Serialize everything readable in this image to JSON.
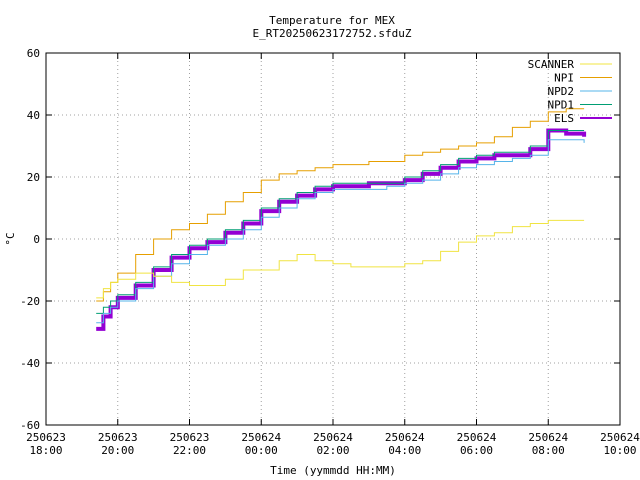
{
  "chart_data": {
    "type": "line",
    "title": "Temperature for MEX",
    "subtitle": "E_RT20250623172752.sfduZ",
    "xlabel": "Time (yymmdd HH:MM)",
    "ylabel": "°C",
    "xlim": [
      18,
      34
    ],
    "ylim": [
      -60,
      60
    ],
    "x_ticks": [
      {
        "value": 18,
        "date": "250623",
        "time": "18:00"
      },
      {
        "value": 20,
        "date": "250623",
        "time": "20:00"
      },
      {
        "value": 22,
        "date": "250623",
        "time": "22:00"
      },
      {
        "value": 24,
        "date": "250624",
        "time": "00:00"
      },
      {
        "value": 26,
        "date": "250624",
        "time": "02:00"
      },
      {
        "value": 28,
        "date": "250624",
        "time": "04:00"
      },
      {
        "value": 30,
        "date": "250624",
        "time": "06:00"
      },
      {
        "value": 32,
        "date": "250624",
        "time": "08:00"
      },
      {
        "value": 34,
        "date": "250624",
        "time": "10:00"
      }
    ],
    "y_ticks": [
      -60,
      -40,
      -20,
      0,
      20,
      40,
      60
    ],
    "grid": true,
    "legend_position": "top-right",
    "series": [
      {
        "name": "ELS",
        "color": "#9400d3",
        "width": 4,
        "x": [
          19.4,
          19.6,
          19.8,
          20.0,
          20.5,
          21.0,
          21.5,
          22.0,
          22.5,
          23.0,
          23.5,
          24.0,
          24.5,
          25.0,
          25.5,
          26.0,
          26.5,
          27.0,
          27.5,
          28.0,
          28.5,
          29.0,
          29.5,
          30.0,
          30.5,
          31.0,
          31.5,
          32.0,
          32.5,
          33.0
        ],
        "y": [
          -29,
          -25,
          -22,
          -19,
          -15,
          -10,
          -6,
          -3,
          -1,
          2,
          5,
          9,
          12,
          14,
          16,
          17,
          17,
          18,
          18,
          19,
          21,
          23,
          25,
          26,
          27,
          27,
          29,
          35,
          34,
          33
        ]
      },
      {
        "name": "NPD1",
        "color": "#009e73",
        "width": 1,
        "x": [
          19.4,
          19.6,
          19.8,
          20.0,
          20.5,
          21.0,
          21.5,
          22.0,
          22.5,
          23.0,
          23.5,
          24.0,
          24.5,
          25.0,
          25.5,
          26.0,
          26.5,
          27.0,
          27.5,
          28.0,
          28.5,
          29.0,
          29.5,
          30.0,
          30.5,
          31.0,
          31.5,
          32.0,
          32.5,
          33.0
        ],
        "y": [
          -24,
          -22,
          -20,
          -18,
          -14,
          -9,
          -5,
          -2,
          0,
          3,
          6,
          10,
          13,
          15,
          17,
          18,
          18,
          18,
          18,
          20,
          22,
          24,
          26,
          27,
          28,
          28,
          30,
          35,
          35,
          35
        ]
      },
      {
        "name": "NPD2",
        "color": "#56b4e9",
        "width": 1,
        "x": [
          19.4,
          19.6,
          19.8,
          20.0,
          20.5,
          21.0,
          21.5,
          22.0,
          22.5,
          23.0,
          23.5,
          24.0,
          24.5,
          25.0,
          25.5,
          26.0,
          26.5,
          27.0,
          27.5,
          28.0,
          28.5,
          29.0,
          29.5,
          30.0,
          30.5,
          31.0,
          31.5,
          32.0,
          32.5,
          33.0
        ],
        "y": [
          -27,
          -24,
          -22,
          -20,
          -16,
          -12,
          -8,
          -5,
          -2,
          0,
          3,
          7,
          10,
          13,
          15,
          16,
          16,
          16,
          17,
          18,
          19,
          21,
          23,
          24,
          25,
          26,
          27,
          32,
          32,
          31
        ]
      },
      {
        "name": "NPI",
        "color": "#e69f00",
        "width": 1,
        "x": [
          19.4,
          19.6,
          19.8,
          20.0,
          20.5,
          21.0,
          21.5,
          22.0,
          22.5,
          23.0,
          23.5,
          24.0,
          24.5,
          25.0,
          25.5,
          26.0,
          26.5,
          27.0,
          27.5,
          28.0,
          28.5,
          29.0,
          29.5,
          30.0,
          30.5,
          31.0,
          31.5,
          32.0,
          32.5,
          33.0
        ],
        "y": [
          -20,
          -17,
          -14,
          -11,
          -5,
          0,
          3,
          5,
          8,
          12,
          15,
          19,
          21,
          22,
          23,
          24,
          24,
          25,
          25,
          27,
          28,
          29,
          30,
          31,
          33,
          36,
          38,
          41,
          42,
          42
        ]
      },
      {
        "name": "SCANNER",
        "color": "#f0e442",
        "width": 1,
        "x": [
          19.4,
          19.6,
          19.8,
          20.0,
          20.5,
          21.0,
          21.5,
          22.0,
          22.5,
          23.0,
          23.5,
          24.0,
          24.5,
          25.0,
          25.5,
          26.0,
          26.5,
          27.0,
          27.5,
          28.0,
          28.5,
          29.0,
          29.5,
          30.0,
          30.5,
          31.0,
          31.5,
          32.0,
          32.5,
          33.0
        ],
        "y": [
          -19,
          -16,
          -14,
          -13,
          -11,
          -12,
          -14,
          -15,
          -15,
          -13,
          -10,
          -10,
          -7,
          -5,
          -7,
          -8,
          -9,
          -9,
          -9,
          -8,
          -7,
          -4,
          -1,
          1,
          2,
          4,
          5,
          6,
          6,
          6
        ]
      }
    ]
  }
}
